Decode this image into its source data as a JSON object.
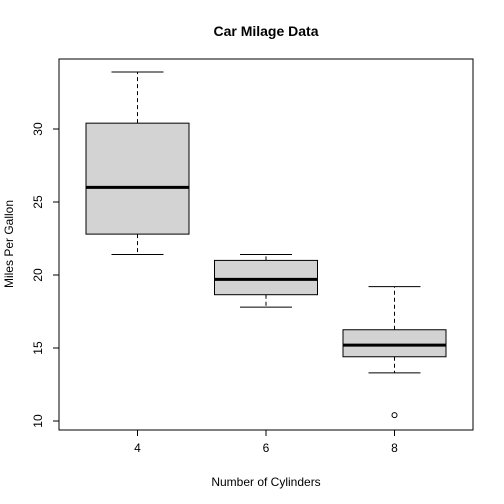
{
  "chart_data": {
    "type": "boxplot",
    "title": "Car Milage Data",
    "xlabel": "Number of Cylinders",
    "ylabel": "Miles Per Gallon",
    "categories": [
      "4",
      "6",
      "8"
    ],
    "ylim": [
      10,
      34
    ],
    "yticks": [
      10,
      15,
      20,
      25,
      30
    ],
    "boxes": [
      {
        "category": "4",
        "whisker_low": 21.4,
        "q1": 22.8,
        "median": 26.0,
        "q3": 30.4,
        "whisker_high": 33.9,
        "outliers": []
      },
      {
        "category": "6",
        "whisker_low": 17.8,
        "q1": 18.65,
        "median": 19.7,
        "q3": 21.0,
        "whisker_high": 21.4,
        "outliers": []
      },
      {
        "category": "8",
        "whisker_low": 13.3,
        "q1": 14.4,
        "median": 15.2,
        "q3": 16.25,
        "whisker_high": 19.2,
        "outliers": [
          10.4
        ]
      }
    ],
    "box_fill": "#d3d3d3",
    "grid": false,
    "legend": "none"
  }
}
